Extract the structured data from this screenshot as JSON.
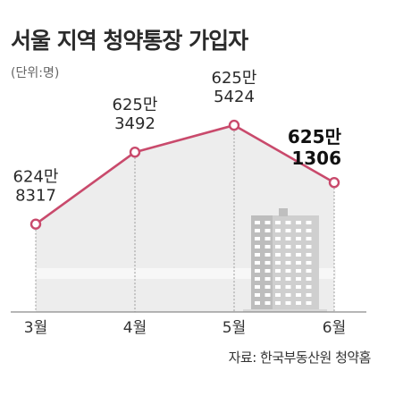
{
  "header": {
    "title": "서울 지역 청약통장 가입자",
    "unit": "(단위:명)"
  },
  "footer": {
    "source": "자료: 한국부동산원 청약홈"
  },
  "colors": {
    "line": "#c94a6c",
    "area": "#ededed",
    "band": "#f7f7f7"
  },
  "chart_data": {
    "type": "area",
    "title": "서울 지역 청약통장 가입자",
    "unit": "(단위:명)",
    "categories": [
      "3월",
      "4월",
      "5월",
      "6월"
    ],
    "values": [
      6248317,
      6253492,
      6255424,
      6251306
    ],
    "labels": [
      [
        "624만",
        "8317"
      ],
      [
        "625만",
        "3492"
      ],
      [
        "625만",
        "5424"
      ],
      [
        "625만",
        "1306"
      ]
    ],
    "ylim": [
      6242000,
      6258000
    ],
    "grid": false,
    "legend": "none"
  }
}
